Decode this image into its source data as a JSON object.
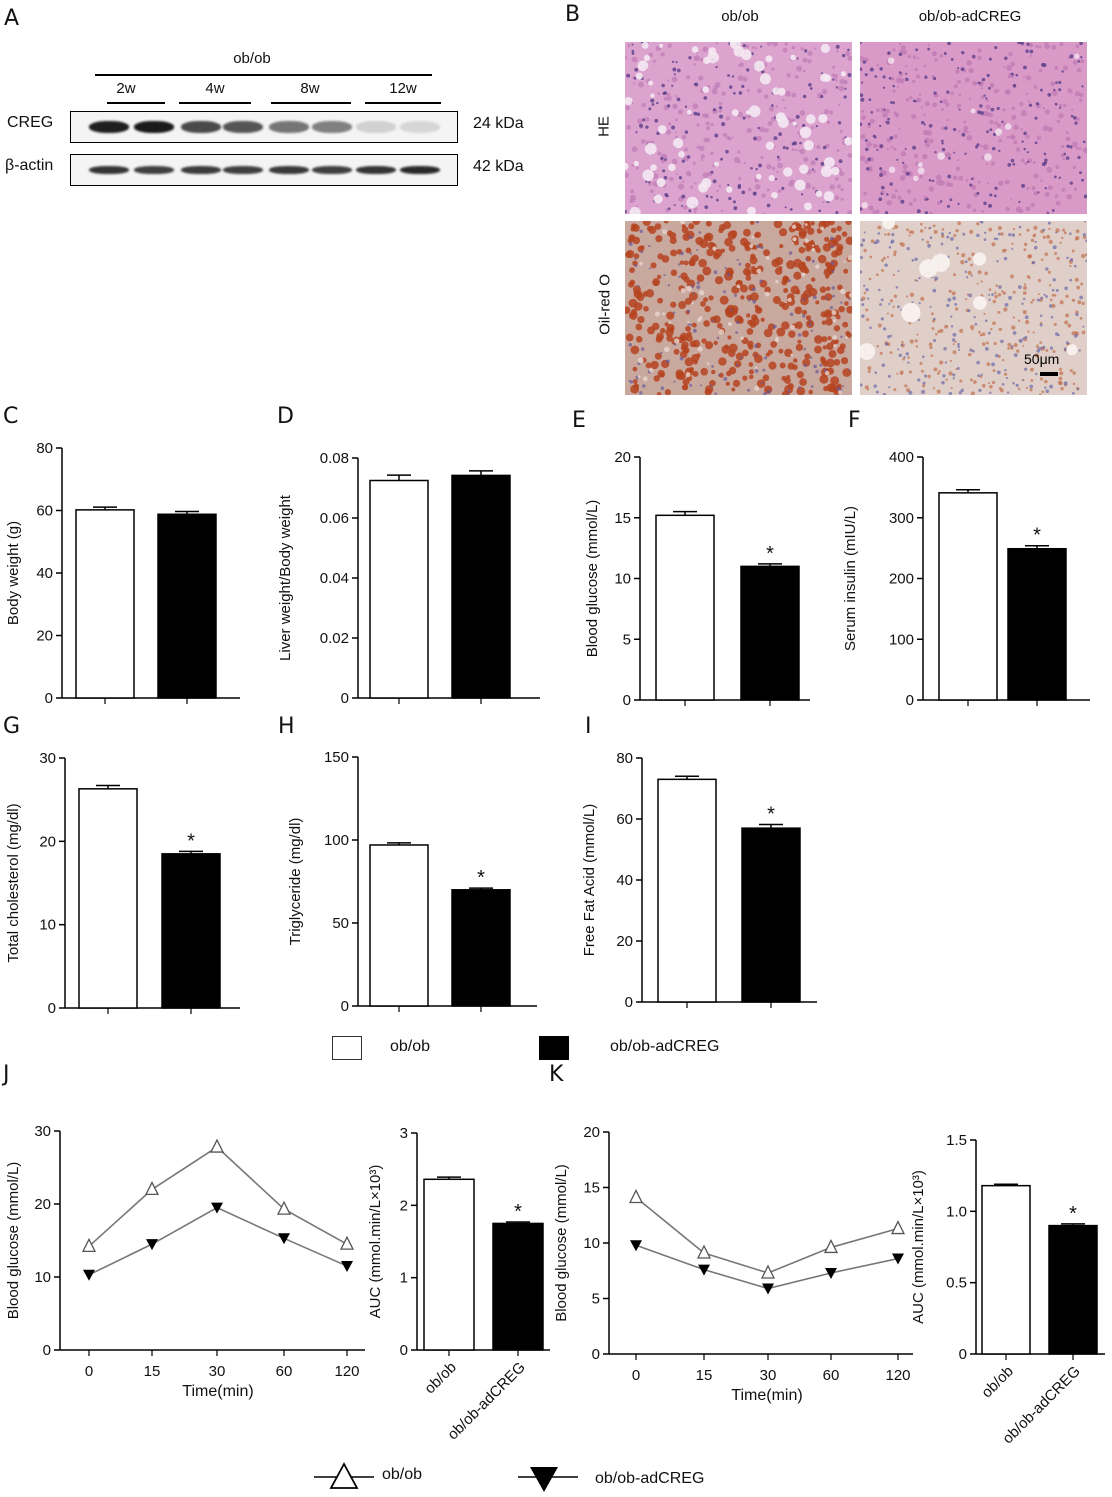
{
  "panels": {
    "A": "A",
    "B": "B",
    "C": "C",
    "D": "D",
    "E": "E",
    "F": "F",
    "G": "G",
    "H": "H",
    "I": "I",
    "J": "J",
    "K": "K"
  },
  "western_blot": {
    "group_label": "ob/ob",
    "timepoints": [
      "2w",
      "4w",
      "8w",
      "12w"
    ],
    "rows": [
      {
        "protein": "CREG",
        "size": "24 kDa",
        "band_intensity": [
          0.95,
          0.97,
          0.75,
          0.7,
          0.55,
          0.5,
          0.12,
          0.1
        ]
      },
      {
        "protein": "β-actin",
        "size": "42 kDa",
        "band_intensity": [
          0.85,
          0.8,
          0.82,
          0.8,
          0.83,
          0.8,
          0.85,
          0.9
        ]
      }
    ]
  },
  "histology": {
    "columns": [
      "ob/ob",
      "ob/ob-adCREG"
    ],
    "rows": [
      "HE",
      "Oil-red O"
    ],
    "scale_bar": "50μm"
  },
  "legend": {
    "bar_items": [
      "ob/ob",
      "ob/ob-adCREG"
    ],
    "line_items": [
      "ob/ob",
      "ob/ob-adCREG"
    ]
  },
  "colors": {
    "ob_ob": "#ffffff",
    "ob_ob_adCREG": "#000000",
    "he_stain": "#d99ac5",
    "oil_red": "#b5431f",
    "line_gray": "#777777"
  },
  "chart_data": [
    {
      "panel": "C",
      "type": "bar",
      "categories": [
        "ob/ob",
        "ob/ob-adCREG"
      ],
      "values": [
        60.2,
        58.8
      ],
      "errors": [
        0.9,
        0.9
      ],
      "ylabel": "Body weight (g)",
      "ylim": [
        0,
        80
      ],
      "yticks": [
        "0",
        "20",
        "40",
        "60",
        "80"
      ],
      "significance": [
        "",
        ""
      ]
    },
    {
      "panel": "D",
      "type": "bar",
      "categories": [
        "ob/ob",
        "ob/ob-adCREG"
      ],
      "values": [
        0.0725,
        0.0742
      ],
      "errors": [
        0.0018,
        0.0015
      ],
      "ylabel": "Liver weight/Body weight",
      "ylim": [
        0,
        0.08
      ],
      "yticks": [
        "0",
        "0.02",
        "0.04",
        "0.06",
        "0.08"
      ],
      "significance": [
        "",
        ""
      ]
    },
    {
      "panel": "E",
      "type": "bar",
      "categories": [
        "ob/ob",
        "ob/ob-adCREG"
      ],
      "values": [
        15.2,
        11.0
      ],
      "errors": [
        0.3,
        0.2
      ],
      "ylabel": "Blood glucose (mmol/L)",
      "ylim": [
        0,
        20
      ],
      "yticks": [
        "0",
        "5",
        "10",
        "15",
        "20"
      ],
      "significance": [
        "",
        "*"
      ]
    },
    {
      "panel": "F",
      "type": "bar",
      "categories": [
        "ob/ob",
        "ob/ob-adCREG"
      ],
      "values": [
        341,
        249
      ],
      "errors": [
        5,
        5
      ],
      "ylabel": "Serum insulin (mIU/L)",
      "ylim": [
        0,
        400
      ],
      "yticks": [
        "0",
        "100",
        "200",
        "300",
        "400"
      ],
      "significance": [
        "",
        "*"
      ]
    },
    {
      "panel": "G",
      "type": "bar",
      "categories": [
        "ob/ob",
        "ob/ob-adCREG"
      ],
      "values": [
        26.3,
        18.5
      ],
      "errors": [
        0.4,
        0.3
      ],
      "ylabel": "Total cholesterol (mg/dl)",
      "ylim": [
        0,
        30
      ],
      "yticks": [
        "0",
        "10",
        "20",
        "30"
      ],
      "significance": [
        "",
        "*"
      ]
    },
    {
      "panel": "H",
      "type": "bar",
      "categories": [
        "ob/ob",
        "ob/ob-adCREG"
      ],
      "values": [
        97,
        70
      ],
      "errors": [
        1.3,
        1.0
      ],
      "ylabel": "Triglyceride (mg/dl)",
      "ylim": [
        0,
        150
      ],
      "yticks": [
        "0",
        "50",
        "100",
        "150"
      ],
      "significance": [
        "",
        "*"
      ]
    },
    {
      "panel": "I",
      "type": "bar",
      "categories": [
        "ob/ob",
        "ob/ob-adCREG"
      ],
      "values": [
        73,
        57
      ],
      "errors": [
        1.0,
        1.2
      ],
      "ylabel": "Free Fat Acid (mmol/L)",
      "ylim": [
        0,
        80
      ],
      "yticks": [
        "0",
        "20",
        "40",
        "60",
        "80"
      ],
      "significance": [
        "",
        "*"
      ]
    },
    {
      "panel": "J",
      "type": "line",
      "x": [
        "0",
        "15",
        "30",
        "60",
        "120"
      ],
      "series": [
        {
          "name": "ob/ob",
          "values": [
            14.2,
            22.0,
            27.8,
            19.3,
            14.5
          ]
        },
        {
          "name": "ob/ob-adCREG",
          "values": [
            10.3,
            14.5,
            19.5,
            15.3,
            11.5
          ]
        }
      ],
      "xlabel": "Time(min)",
      "ylabel": "Blood glucose (mmol/L)",
      "ylim": [
        0,
        30
      ],
      "yticks": [
        "0",
        "10",
        "20",
        "30"
      ]
    },
    {
      "panel": "J",
      "type": "bar",
      "categories": [
        "ob/ob",
        "ob/ob-adCREG"
      ],
      "values": [
        2.36,
        1.75
      ],
      "errors": [
        0.03,
        0.02
      ],
      "ylabel": "AUC (mmol.min/L×10³)",
      "ylim": [
        0,
        3
      ],
      "yticks": [
        "0",
        "1",
        "2",
        "3"
      ],
      "significance": [
        "",
        "*"
      ]
    },
    {
      "panel": "K",
      "type": "line",
      "x": [
        "0",
        "15",
        "30",
        "60",
        "120"
      ],
      "series": [
        {
          "name": "ob/ob",
          "values": [
            14.1,
            9.1,
            7.3,
            9.6,
            11.3
          ]
        },
        {
          "name": "ob/ob-adCREG",
          "values": [
            9.8,
            7.6,
            5.9,
            7.3,
            8.6
          ]
        }
      ],
      "xlabel": "Time(min)",
      "ylabel": "Blood glucose (mmol/L)",
      "ylim": [
        0,
        20
      ],
      "yticks": [
        "0",
        "5",
        "10",
        "15",
        "20"
      ]
    },
    {
      "panel": "K",
      "type": "bar",
      "categories": [
        "ob/ob",
        "ob/ob-adCREG"
      ],
      "values": [
        1.18,
        0.9
      ],
      "errors": [
        0.01,
        0.012
      ],
      "ylabel": "AUC (mmol.min/L×10³)",
      "ylim": [
        0,
        1.5
      ],
      "yticks": [
        "0",
        "0.5",
        "1.0",
        "1.5"
      ],
      "significance": [
        "",
        "*"
      ]
    }
  ]
}
